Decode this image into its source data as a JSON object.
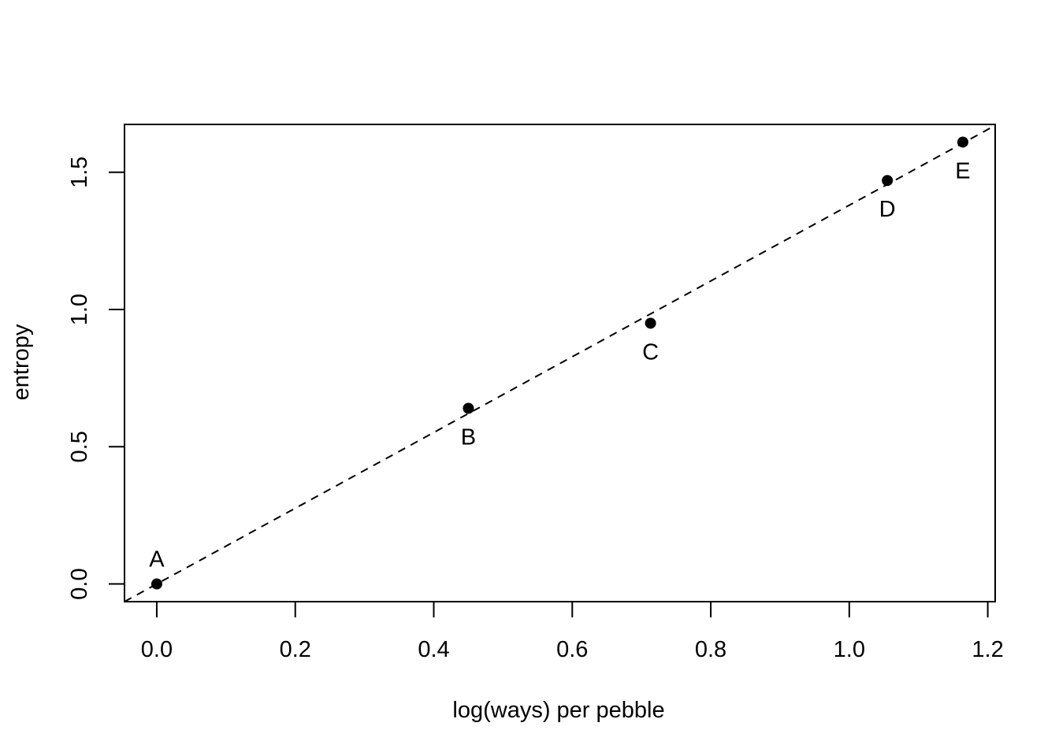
{
  "chart_data": {
    "type": "scatter",
    "title": "",
    "xlabel": "log(ways) per pebble",
    "ylabel": "entropy",
    "xlim": [
      -0.0466,
      1.2107
    ],
    "ylim": [
      -0.0644,
      1.6744
    ],
    "x_ticks": [
      {
        "value": 0.0,
        "label": "0.0"
      },
      {
        "value": 0.2,
        "label": "0.2"
      },
      {
        "value": 0.4,
        "label": "0.4"
      },
      {
        "value": 0.6,
        "label": "0.6"
      },
      {
        "value": 0.8,
        "label": "0.8"
      },
      {
        "value": 1.0,
        "label": "1.0"
      },
      {
        "value": 1.2,
        "label": "1.2"
      }
    ],
    "y_ticks": [
      {
        "value": 0.0,
        "label": "0.0"
      },
      {
        "value": 0.5,
        "label": "0.5"
      },
      {
        "value": 1.0,
        "label": "1.0"
      },
      {
        "value": 1.5,
        "label": "1.5"
      }
    ],
    "points": [
      {
        "label": "A",
        "x": 0.0,
        "y": 0.0,
        "label_pos": "above"
      },
      {
        "label": "B",
        "x": 0.45,
        "y": 0.64,
        "label_pos": "below"
      },
      {
        "label": "C",
        "x": 0.713,
        "y": 0.95,
        "label_pos": "below"
      },
      {
        "label": "D",
        "x": 1.055,
        "y": 1.47,
        "label_pos": "below"
      },
      {
        "label": "E",
        "x": 1.164,
        "y": 1.61,
        "label_pos": "below"
      }
    ],
    "reference_line": {
      "intercept": 0,
      "slope": 1.38,
      "style": "dashed"
    },
    "grid": false,
    "legend": "none",
    "marker_color": "#000000",
    "line_color": "#000000"
  }
}
